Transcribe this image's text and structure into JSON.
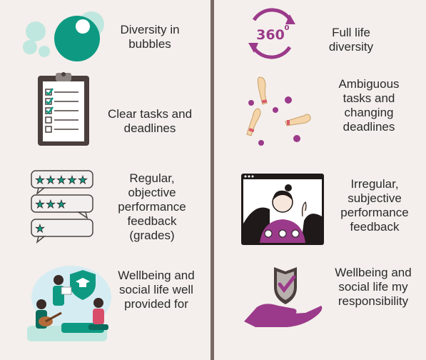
{
  "colors": {
    "background": "#f4efec",
    "divider": "#7a6a66",
    "teal": "#0e9a82",
    "light_teal": "#bfe7df",
    "purple": "#9b3a8a",
    "dark": "#3a3432"
  },
  "left": [
    {
      "label": "Diversity in bubbles",
      "icon": "bubbles-icon"
    },
    {
      "label": "Clear tasks and deadlines",
      "icon": "clipboard-checklist-icon"
    },
    {
      "label": "Regular, objective performance feedback (grades)",
      "icon": "star-rating-speech-bubbles-icon"
    },
    {
      "label": "Wellbeing and social life well provided for",
      "icon": "campus-life-illustration-icon"
    }
  ],
  "right": [
    {
      "label": "Full life diversity",
      "icon": "360-degree-icon"
    },
    {
      "label": "Ambiguous tasks and changing deadlines",
      "icon": "juggling-pins-icon"
    },
    {
      "label": "Irregular, subjective performance feedback",
      "icon": "video-call-person-icon"
    },
    {
      "label": "Wellbeing and social life my responsibility",
      "icon": "hand-shield-check-icon"
    }
  ],
  "badge_360": "360",
  "badge_degree": "0"
}
